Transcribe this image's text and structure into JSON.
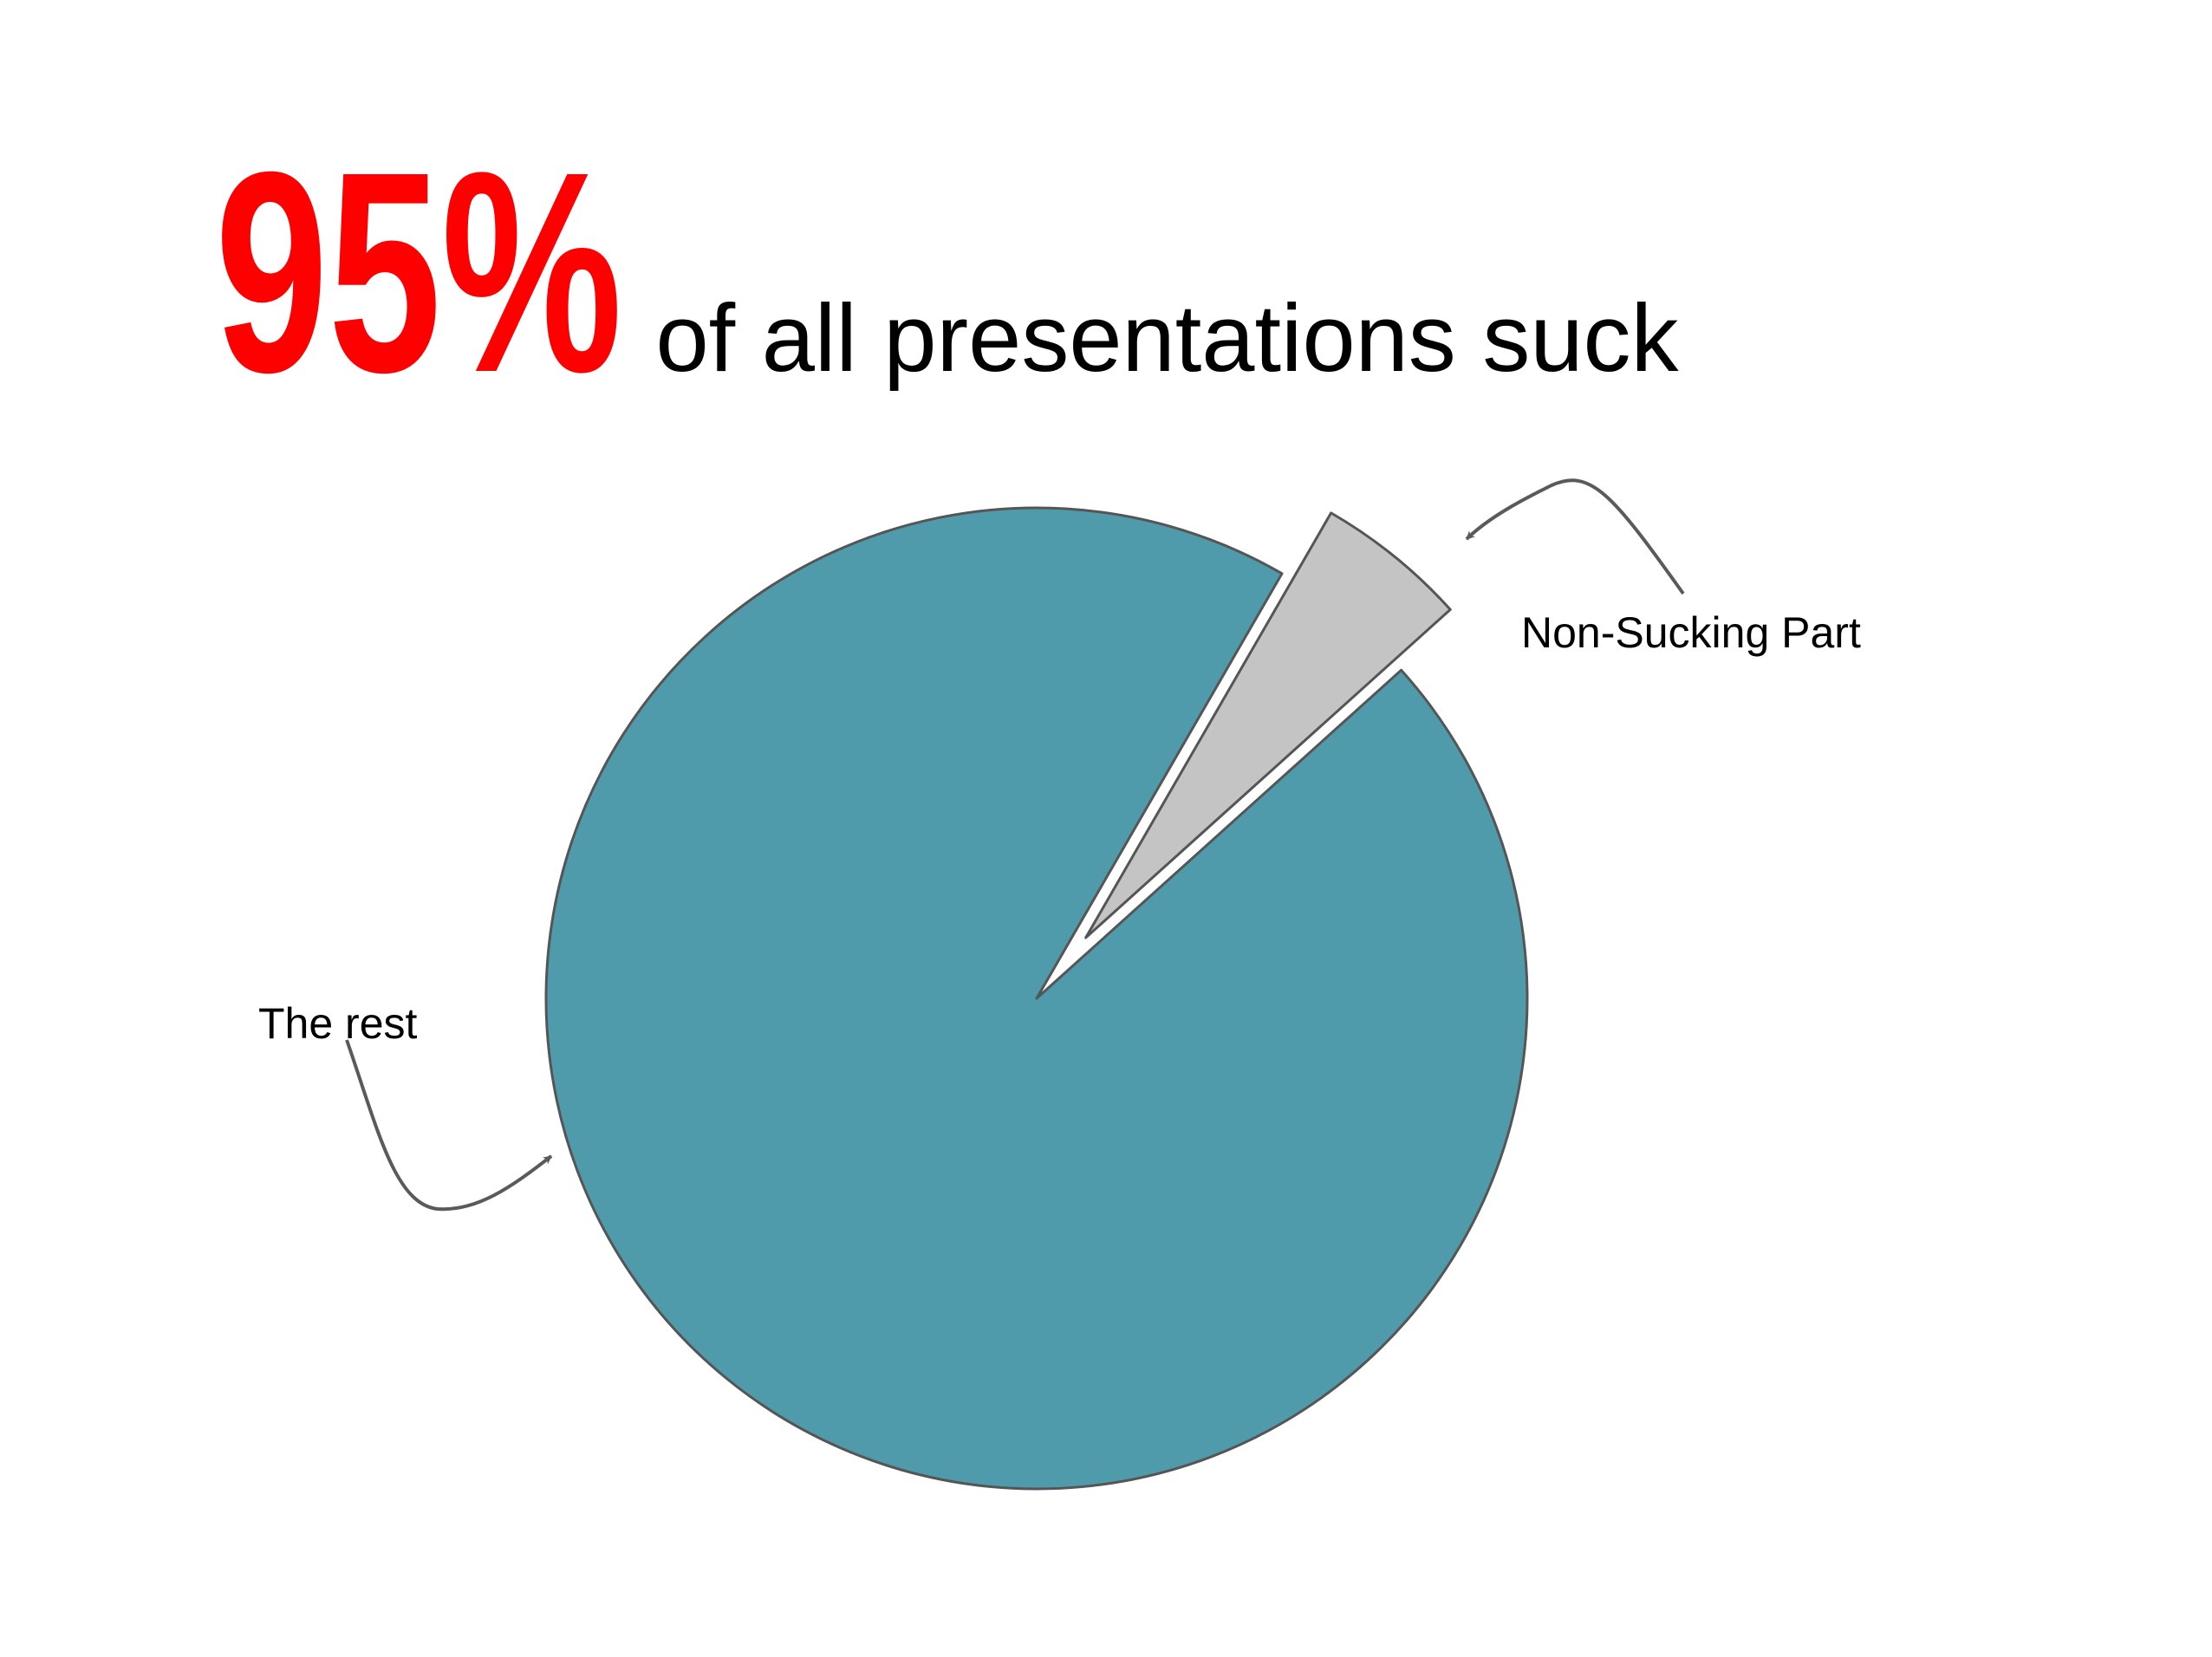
{
  "headline": {
    "percent": "95%",
    "rest": "of all presentations suck",
    "percent_color": "#ff0000",
    "text_color": "#000000"
  },
  "chart_data": {
    "type": "pie",
    "slices": [
      {
        "label": "The rest",
        "value": 95,
        "color": "#509bab"
      },
      {
        "label": "Non-Sucking Part",
        "value": 5,
        "color": "#c4c4c4",
        "exploded": true
      }
    ],
    "legend": "none"
  },
  "colors": {
    "background": "#ffffff",
    "outline": "#555555",
    "arrow": "#5a5a5a"
  }
}
